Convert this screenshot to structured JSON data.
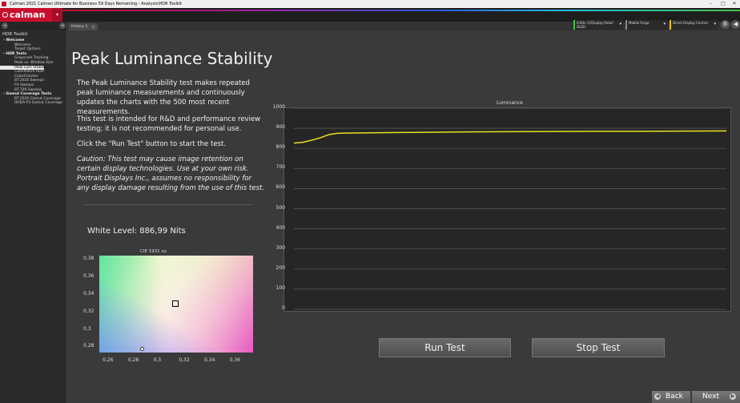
{
  "window": {
    "title": "Calman 2021 Calman Ultimate for Business 59 Days Remaining - Analysis\\HDR Toolkit",
    "minimize": "–",
    "maximize": "□",
    "close": "✕"
  },
  "logo": {
    "text": "calman",
    "menu": "▾"
  },
  "sidebar": {
    "collapse": "◂",
    "expand": "◂",
    "title": "HDR Toolkit",
    "groups": [
      {
        "label": "- Welcome",
        "items": [
          "Welcome",
          "Target Options"
        ]
      },
      {
        "label": "- HDR Tests",
        "items": [
          "Grayscale Tracking",
          "Peak vs. Window Size",
          "Peak Lum Stabilit",
          "ColorMatch HDR",
          "ColorChecker",
          "BT.2020 Sweeps",
          "P3 Sweeps",
          "BT.709 Sweeps"
        ]
      },
      {
        "label": "- Gamut Coverage Tests",
        "items": [
          "BT.2020 Gamut Coverage",
          "UHDA-P3 Gamut Coverage"
        ]
      }
    ],
    "selected": "Peak Lum Stabilit"
  },
  "tabs": [
    {
      "label": "History 1"
    }
  ],
  "devices": [
    {
      "line1": "6-Bits (1)Display Retail",
      "line2": "OLED",
      "color": "#3cc83c"
    },
    {
      "line1": "Mobile Forge",
      "line2": "",
      "color": "#888888"
    },
    {
      "line1": "Direct Display Control",
      "line2": "",
      "color": "#f0c020"
    }
  ],
  "page": {
    "title": "Peak Luminance Stability",
    "para1": "The Peak Luminance Stability test makes repeated peak luminance measurements and continuously updates the charts with the 500 most recent measurements.",
    "para2": "This test is intended for R&D and performance review testing; it is not recommended for personal use.",
    "para3": "Click the \"Run Test\" button to start the test.",
    "caution": "Caution: This test may cause image retention on certain display technologies. Use at your own risk. Portrait Displays Inc., assumes no responsibility for any display damage resulting from the use of this test.",
    "white_level": "White Level: 886,99 Nits"
  },
  "cie": {
    "title": "CIE 1931 xy",
    "x_ticks": [
      "0,26",
      "0,28",
      "0,3",
      "0,32",
      "0,34",
      "0,36"
    ],
    "y_ticks": [
      "0,38",
      "0,36",
      "0,34",
      "0,32",
      "0,3",
      "0,28"
    ],
    "xlim": [
      0.253,
      0.374
    ],
    "ylim": [
      0.273,
      0.384
    ],
    "target": {
      "x": 0.3127,
      "y": 0.329
    },
    "measured": {
      "x": 0.287,
      "y": 0.277
    }
  },
  "chart_data": {
    "type": "line",
    "title": "Luminance",
    "xlabel": "",
    "ylabel": "",
    "ylim": [
      0,
      1000
    ],
    "yticks": [
      0,
      100,
      200,
      300,
      400,
      500,
      600,
      700,
      800,
      900,
      1000
    ],
    "grid": true,
    "series": [
      {
        "color": "#e8e020",
        "x": [
          0,
          10,
          20,
          30,
          40,
          50,
          60,
          80,
          100,
          150,
          200,
          250,
          300,
          350,
          400,
          450,
          500
        ],
        "values": [
          826,
          830,
          840,
          852,
          868,
          875,
          876,
          877,
          878,
          880,
          882,
          883,
          884,
          885,
          885,
          886,
          887
        ]
      }
    ]
  },
  "buttons": {
    "run": "Run Test",
    "stop": "Stop Test",
    "back": "Back",
    "next": "Next"
  }
}
